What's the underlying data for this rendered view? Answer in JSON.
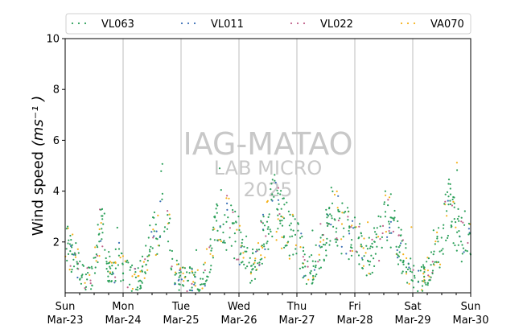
{
  "chart_data": {
    "type": "scatter",
    "ylabel": "Wind speed",
    "ylabel_math": "(ms⁻¹ )",
    "ylim": [
      0,
      10
    ],
    "xlim": [
      "2025-03-23",
      "2025-03-30"
    ],
    "yticks": [
      2,
      4,
      6,
      8,
      10
    ],
    "xticks": [
      {
        "date": "2025-03-23",
        "day": "Sun",
        "label": "Mar-23"
      },
      {
        "date": "2025-03-24",
        "day": "Mon",
        "label": "Mar-24"
      },
      {
        "date": "2025-03-25",
        "day": "Tue",
        "label": "Mar-25"
      },
      {
        "date": "2025-03-26",
        "day": "Wed",
        "label": "Mar-26"
      },
      {
        "date": "2025-03-27",
        "day": "Thu",
        "label": "Mar-27"
      },
      {
        "date": "2025-03-28",
        "day": "Fri",
        "label": "Mar-28"
      },
      {
        "date": "2025-03-29",
        "day": "Sat",
        "label": "Mar-29"
      },
      {
        "date": "2025-03-30",
        "day": "Sun",
        "label": "Mar-30"
      }
    ],
    "grid": "vertical-major",
    "legend_placement": "top",
    "watermark": [
      "IAG-MATAO",
      "LAB MICRO",
      "2025"
    ],
    "series": [
      {
        "name": "VL063",
        "color": "#2ca05a"
      },
      {
        "name": "VL011",
        "color": "#3b6fb6"
      },
      {
        "name": "VL022",
        "color": "#c0608a"
      },
      {
        "name": "VA070",
        "color": "#f5b21b"
      }
    ],
    "trend_profile": {
      "description": "approximate centre wind speed (m s-1) by day offset from Mar-23 00:00",
      "points": [
        [
          0.0,
          2.5
        ],
        [
          0.1,
          1.6
        ],
        [
          0.2,
          1.2
        ],
        [
          0.3,
          0.6
        ],
        [
          0.4,
          0.5
        ],
        [
          0.48,
          0.9
        ],
        [
          0.55,
          1.8
        ],
        [
          0.62,
          2.7
        ],
        [
          0.68,
          2.2
        ],
        [
          0.75,
          1.0
        ],
        [
          0.82,
          0.6
        ],
        [
          0.9,
          1.3
        ],
        [
          1.0,
          1.0
        ],
        [
          1.08,
          0.7
        ],
        [
          1.18,
          0.5
        ],
        [
          1.28,
          0.6
        ],
        [
          1.4,
          1.2
        ],
        [
          1.48,
          2.0
        ],
        [
          1.55,
          2.4
        ],
        [
          1.62,
          2.8
        ],
        [
          1.7,
          3.1
        ],
        [
          1.78,
          2.5
        ],
        [
          1.85,
          1.5
        ],
        [
          1.9,
          0.8
        ],
        [
          2.0,
          0.5
        ],
        [
          2.15,
          0.5
        ],
        [
          2.3,
          0.4
        ],
        [
          2.4,
          0.8
        ],
        [
          2.5,
          1.6
        ],
        [
          2.6,
          2.4
        ],
        [
          2.7,
          3.0
        ],
        [
          2.8,
          2.8
        ],
        [
          2.9,
          2.4
        ],
        [
          3.0,
          2.1
        ],
        [
          3.1,
          1.6
        ],
        [
          3.2,
          1.0
        ],
        [
          3.3,
          1.3
        ],
        [
          3.4,
          2.1
        ],
        [
          3.5,
          2.6
        ],
        [
          3.6,
          3.4
        ],
        [
          3.7,
          3.1
        ],
        [
          3.8,
          2.6
        ],
        [
          3.9,
          2.2
        ],
        [
          4.0,
          2.0
        ],
        [
          4.1,
          1.4
        ],
        [
          4.2,
          0.8
        ],
        [
          4.3,
          1.0
        ],
        [
          4.4,
          1.8
        ],
        [
          4.5,
          2.4
        ],
        [
          4.6,
          3.3
        ],
        [
          4.7,
          3.0
        ],
        [
          4.8,
          2.5
        ],
        [
          4.9,
          2.3
        ],
        [
          5.0,
          2.1
        ],
        [
          5.1,
          1.8
        ],
        [
          5.2,
          1.4
        ],
        [
          5.3,
          1.5
        ],
        [
          5.4,
          2.1
        ],
        [
          5.5,
          2.8
        ],
        [
          5.6,
          3.0
        ],
        [
          5.7,
          2.3
        ],
        [
          5.8,
          1.5
        ],
        [
          5.9,
          1.0
        ],
        [
          6.0,
          0.6
        ],
        [
          6.1,
          0.5
        ],
        [
          6.2,
          0.6
        ],
        [
          6.3,
          1.1
        ],
        [
          6.4,
          1.5
        ],
        [
          6.5,
          2.1
        ],
        [
          6.6,
          3.4
        ],
        [
          6.7,
          2.8
        ],
        [
          6.8,
          2.3
        ],
        [
          6.9,
          2.1
        ],
        [
          7.0,
          2.2
        ]
      ]
    }
  }
}
